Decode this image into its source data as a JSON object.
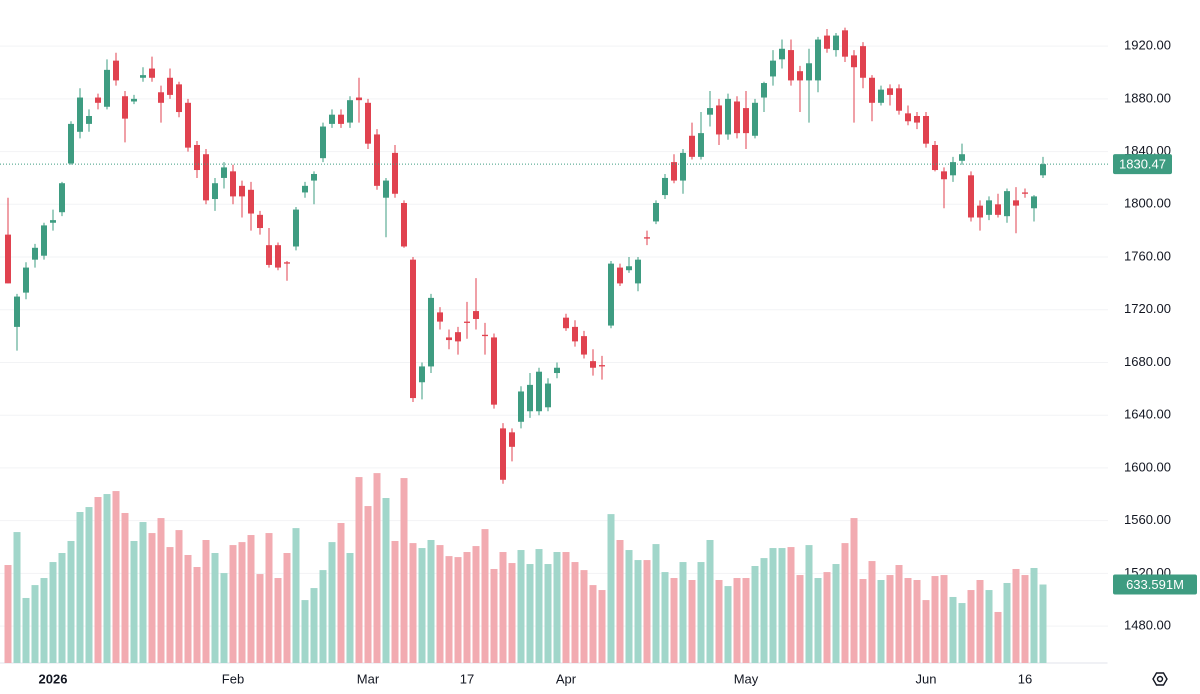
{
  "chart_data": {
    "type": "candlestick",
    "ylim": [
      1452,
      1955
    ],
    "yticks": [
      {
        "value": 1480,
        "label": "1480.00"
      },
      {
        "value": 1520,
        "label": "1520.00"
      },
      {
        "value": 1560,
        "label": "1560.00"
      },
      {
        "value": 1600,
        "label": "1600.00"
      },
      {
        "value": 1640,
        "label": "1640.00"
      },
      {
        "value": 1680,
        "label": "1680.00"
      },
      {
        "value": 1720,
        "label": "1720.00"
      },
      {
        "value": 1760,
        "label": "1760.00"
      },
      {
        "value": 1800,
        "label": "1800.00"
      },
      {
        "value": 1840,
        "label": "1840.00"
      },
      {
        "value": 1880,
        "label": "1880.00"
      },
      {
        "value": 1920,
        "label": "1920.00"
      }
    ],
    "xticks": [
      {
        "value": 5,
        "label": "2026"
      },
      {
        "value": 25,
        "label": "Feb"
      },
      {
        "value": 40,
        "label": "Mar"
      },
      {
        "value": 51,
        "label": "17"
      },
      {
        "value": 62,
        "label": "Apr"
      },
      {
        "value": 82,
        "label": "May"
      },
      {
        "value": 102,
        "label": "Jun"
      },
      {
        "value": 113,
        "label": "16"
      }
    ],
    "up_color": "#3e9c81",
    "down_color": "#e0424f",
    "volume_up_color": "#a1d6ca",
    "volume_down_color": "#f2abb1",
    "volume_ylim": [
      0,
      1550
    ],
    "open": [
      1777,
      1707,
      1733,
      1758,
      1761,
      1786,
      1794,
      1831,
      1855,
      1861,
      1881,
      1874,
      1909,
      1882,
      1878,
      1896,
      1903,
      1885,
      1896,
      1891,
      1877,
      1845,
      1838,
      1804,
      1820,
      1825,
      1814,
      1811,
      1792,
      1769,
      1769,
      1756,
      1768,
      1809,
      1818,
      1835,
      1861,
      1868,
      1862,
      1881,
      1877,
      1853,
      1805,
      1839,
      1801,
      1758,
      1665,
      1677,
      1718,
      1699,
      1703,
      1711,
      1719,
      1701,
      1699,
      1630,
      1627,
      1635,
      1643,
      1643,
      1646,
      1672,
      1714,
      1707,
      1700,
      1681,
      1678,
      1708,
      1752,
      1750,
      1740,
      1775,
      1787,
      1807,
      1832,
      1818,
      1852,
      1836,
      1868,
      1875,
      1853,
      1878,
      1873,
      1852,
      1881,
      1897,
      1910,
      1917,
      1901,
      1894,
      1894,
      1928,
      1917,
      1932,
      1913,
      1920,
      1896,
      1877,
      1888,
      1888,
      1869,
      1867,
      1867,
      1845,
      1825,
      1822,
      1833,
      1822,
      1799,
      1792,
      1800,
      1791,
      1803,
      1809,
      1797,
      1822
    ],
    "high": [
      1805,
      1732,
      1756,
      1770,
      1786,
      1796,
      1817,
      1863,
      1888,
      1872,
      1884,
      1910,
      1915,
      1886,
      1883,
      1904,
      1912,
      1890,
      1903,
      1893,
      1880,
      1848,
      1842,
      1820,
      1832,
      1830,
      1818,
      1817,
      1795,
      1782,
      1771,
      1757,
      1798,
      1817,
      1825,
      1862,
      1872,
      1872,
      1882,
      1896,
      1880,
      1857,
      1820,
      1845,
      1803,
      1760,
      1680,
      1732,
      1722,
      1705,
      1707,
      1726,
      1744,
      1710,
      1702,
      1634,
      1630,
      1662,
      1672,
      1676,
      1668,
      1680,
      1717,
      1712,
      1704,
      1690,
      1685,
      1757,
      1755,
      1760,
      1760,
      1780,
      1803,
      1823,
      1838,
      1842,
      1862,
      1870,
      1886,
      1880,
      1884,
      1882,
      1886,
      1880,
      1893,
      1917,
      1925,
      1925,
      1905,
      1918,
      1927,
      1933,
      1930,
      1934,
      1917,
      1923,
      1898,
      1890,
      1891,
      1891,
      1875,
      1870,
      1870,
      1848,
      1828,
      1836,
      1846,
      1825,
      1803,
      1806,
      1808,
      1812,
      1813,
      1812,
      1807,
      1836
    ],
    "low": [
      1740,
      1689,
      1728,
      1752,
      1758,
      1780,
      1791,
      1830,
      1850,
      1855,
      1872,
      1872,
      1890,
      1847,
      1876,
      1893,
      1893,
      1862,
      1880,
      1866,
      1840,
      1820,
      1800,
      1795,
      1812,
      1800,
      1790,
      1780,
      1777,
      1752,
      1750,
      1742,
      1765,
      1805,
      1800,
      1832,
      1858,
      1858,
      1858,
      1862,
      1842,
      1811,
      1775,
      1805,
      1767,
      1650,
      1652,
      1672,
      1705,
      1690,
      1686,
      1698,
      1705,
      1686,
      1645,
      1588,
      1605,
      1630,
      1638,
      1640,
      1643,
      1668,
      1704,
      1692,
      1683,
      1670,
      1667,
      1706,
      1738,
      1748,
      1734,
      1769,
      1785,
      1804,
      1816,
      1808,
      1834,
      1834,
      1859,
      1845,
      1849,
      1850,
      1842,
      1850,
      1870,
      1890,
      1903,
      1890,
      1870,
      1862,
      1885,
      1915,
      1912,
      1908,
      1862,
      1888,
      1863,
      1875,
      1875,
      1868,
      1860,
      1857,
      1843,
      1825,
      1797,
      1817,
      1830,
      1787,
      1780,
      1788,
      1790,
      1786,
      1778,
      1805,
      1787,
      1820
    ],
    "close": [
      1740,
      1730,
      1752,
      1767,
      1784,
      1788,
      1816,
      1861,
      1881,
      1867,
      1877,
      1902,
      1894,
      1865,
      1880,
      1898,
      1896,
      1877,
      1883,
      1870,
      1843,
      1826,
      1803,
      1816,
      1828,
      1806,
      1806,
      1793,
      1782,
      1754,
      1752,
      1755,
      1796,
      1814,
      1823,
      1859,
      1868,
      1861,
      1879,
      1879,
      1846,
      1814,
      1818,
      1808,
      1768,
      1653,
      1677,
      1729,
      1711,
      1697,
      1696,
      1710,
      1713,
      1700,
      1648,
      1591,
      1616,
      1658,
      1663,
      1673,
      1664,
      1676,
      1706,
      1696,
      1686,
      1676,
      1677,
      1755,
      1740,
      1753,
      1758,
      1774,
      1801,
      1820,
      1818,
      1839,
      1836,
      1854,
      1873,
      1853,
      1880,
      1854,
      1854,
      1877,
      1892,
      1909,
      1918,
      1894,
      1894,
      1907,
      1925,
      1918,
      1928,
      1912,
      1904,
      1896,
      1877,
      1887,
      1883,
      1871,
      1863,
      1862,
      1846,
      1826,
      1819,
      1832,
      1838,
      1790,
      1790,
      1803,
      1792,
      1810,
      1799,
      1808,
      1806,
      1830.47
    ],
    "volume": [
      791,
      1057,
      525,
      629,
      686,
      815,
      888,
      985,
      1219,
      1259,
      1340,
      1364,
      1388,
      1211,
      985,
      1138,
      1049,
      1170,
      936,
      1073,
      872,
      775,
      993,
      888,
      726,
      952,
      976,
      1033,
      718,
      1049,
      686,
      888,
      1089,
      508,
      605,
      750,
      976,
      1130,
      888,
      1501,
      1267,
      1533,
      1332,
      985,
      1493,
      968,
      928,
      993,
      952,
      863,
      855,
      896,
      944,
      1081,
      759,
      896,
      807,
      912,
      799,
      920,
      799,
      896,
      896,
      815,
      750,
      629,
      589,
      1202,
      993,
      912,
      831,
      831,
      960,
      734,
      686,
      815,
      670,
      815,
      993,
      670,
      621,
      686,
      686,
      783,
      847,
      928,
      928,
      936,
      710,
      952,
      686,
      734,
      799,
      968,
      1170,
      678,
      823,
      670,
      710,
      791,
      686,
      670,
      508,
      702,
      710,
      533,
      484,
      589,
      670,
      589,
      412,
      646,
      759,
      710,
      767,
      633.591
    ],
    "last_price": 1830.47,
    "last_volume": 633.591,
    "last_volume_label": "633.591M"
  }
}
